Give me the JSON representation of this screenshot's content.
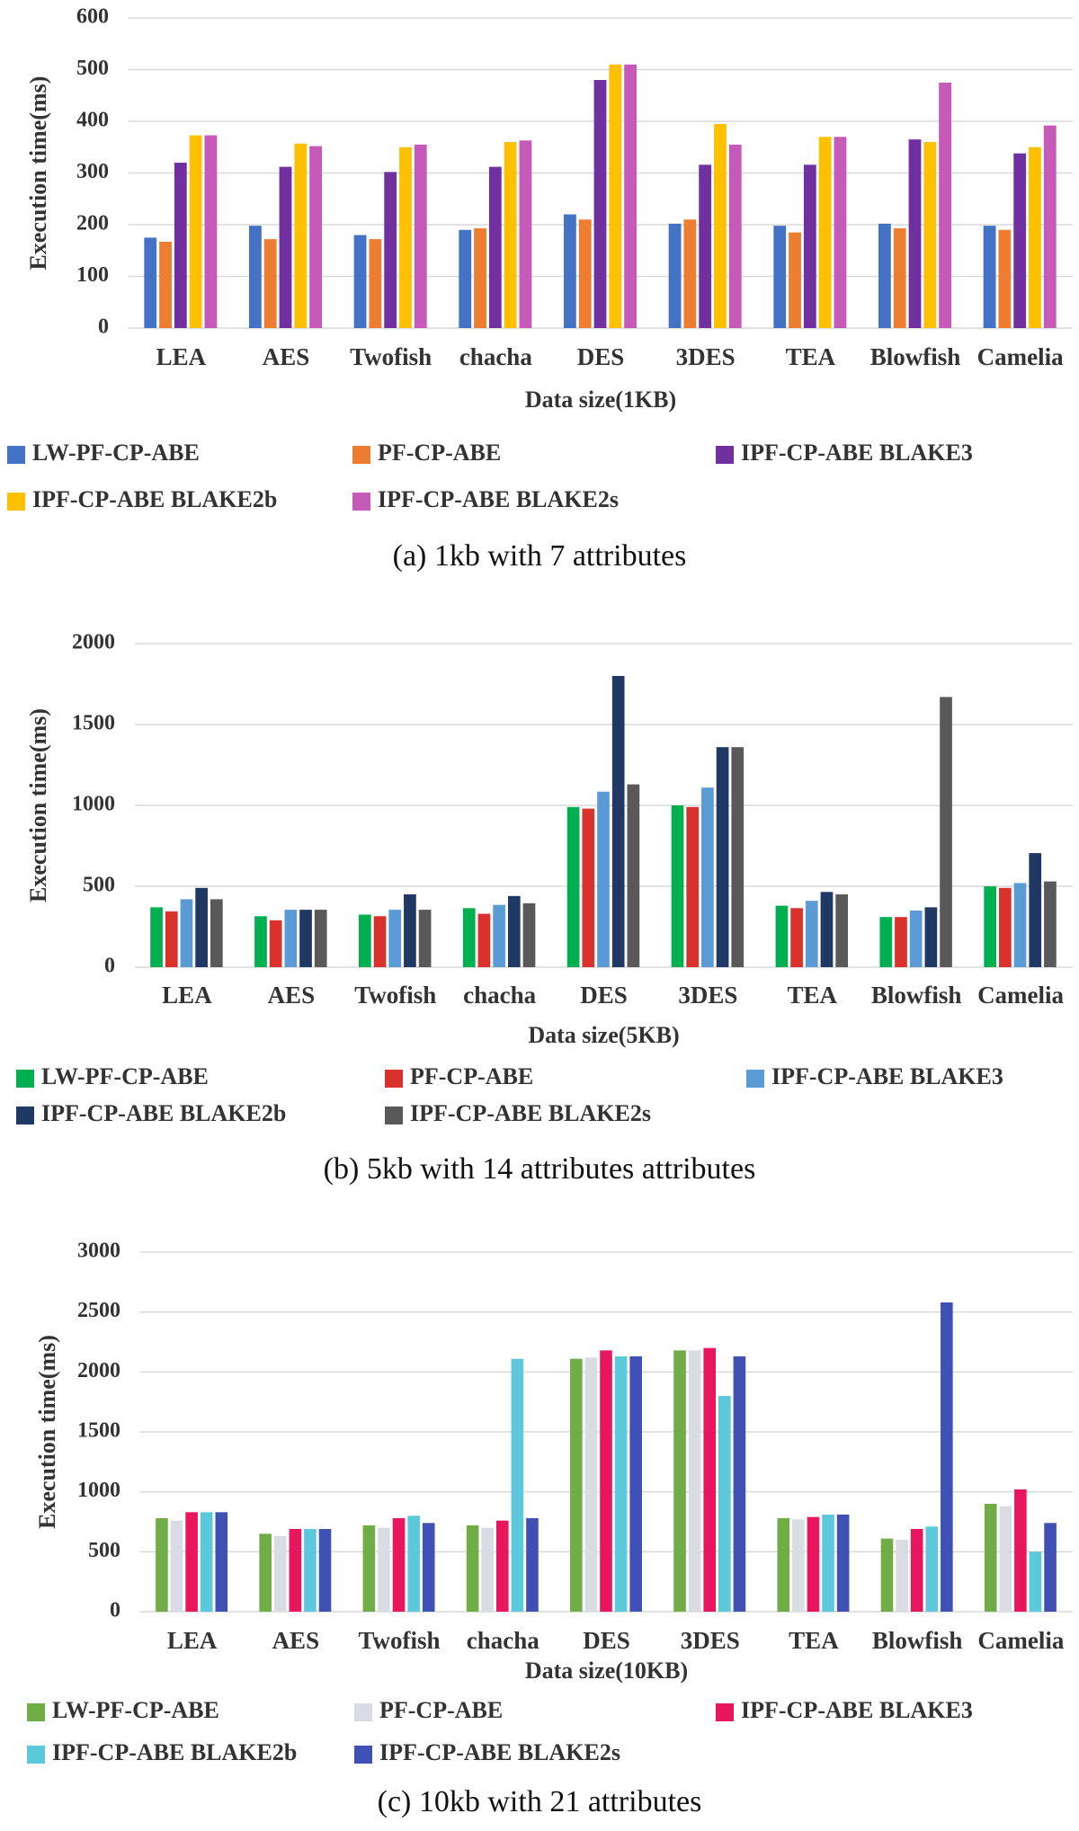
{
  "chart_data": [
    {
      "type": "bar",
      "caption": "(a) 1kb with 7 attributes",
      "x_label": "Data size(1KB)",
      "y_label": "Execution time(ms)",
      "categories": [
        "LEA",
        "AES",
        "Twofish",
        "chacha",
        "DES",
        "3DES",
        "TEA",
        "Blowfish",
        "Camelia"
      ],
      "ylim": [
        0,
        600
      ],
      "yticks": [
        0,
        100,
        200,
        300,
        400,
        500,
        600
      ],
      "grid": true,
      "series": [
        {
          "name": "LW-PF-CP-ABE",
          "color": "#4472c4",
          "values": [
            175,
            198,
            180,
            190,
            220,
            202,
            198,
            202,
            198
          ]
        },
        {
          "name": "PF-CP-ABE",
          "color": "#ed7d31",
          "values": [
            167,
            172,
            172,
            193,
            210,
            210,
            185,
            193,
            190
          ]
        },
        {
          "name": "IPF-CP-ABE BLAKE3",
          "color": "#7030a0",
          "values": [
            320,
            312,
            302,
            312,
            480,
            316,
            316,
            365,
            338
          ]
        },
        {
          "name": "IPF-CP-ABE BLAKE2b",
          "color": "#ffc000",
          "values": [
            373,
            357,
            350,
            360,
            510,
            395,
            370,
            360,
            350
          ]
        },
        {
          "name": "IPF-CP-ABE BLAKE2s",
          "color": "#c55ab8",
          "values": [
            373,
            352,
            355,
            363,
            510,
            355,
            370,
            475,
            392
          ]
        }
      ]
    },
    {
      "type": "bar",
      "caption": "(b) 5kb with 14 attributes attributes",
      "x_label": "Data size(5KB)",
      "y_label": "Execution time(ms)",
      "categories": [
        "LEA",
        "AES",
        "Twofish",
        "chacha",
        "DES",
        "3DES",
        "TEA",
        "Blowfish",
        "Camelia"
      ],
      "ylim": [
        0,
        2000
      ],
      "yticks": [
        0,
        500,
        1000,
        1500,
        2000
      ],
      "grid": true,
      "series": [
        {
          "name": "LW-PF-CP-ABE",
          "color": "#00b050",
          "values": [
            370,
            315,
            325,
            365,
            990,
            1000,
            380,
            310,
            500
          ]
        },
        {
          "name": "PF-CP-ABE",
          "color": "#d9312b",
          "values": [
            345,
            290,
            315,
            330,
            980,
            990,
            365,
            310,
            490
          ]
        },
        {
          "name": "IPF-CP-ABE BLAKE3",
          "color": "#5b9bd5",
          "values": [
            420,
            355,
            355,
            385,
            1085,
            1110,
            410,
            350,
            520
          ]
        },
        {
          "name": "IPF-CP-ABE BLAKE2b",
          "color": "#203864",
          "values": [
            490,
            355,
            450,
            440,
            1800,
            1360,
            465,
            370,
            705
          ]
        },
        {
          "name": "IPF-CP-ABE BLAKE2s",
          "color": "#595959",
          "values": [
            420,
            355,
            355,
            395,
            1130,
            1360,
            450,
            1670,
            530
          ]
        }
      ]
    },
    {
      "type": "bar",
      "caption": "(c) 10kb with 21 attributes",
      "x_label": "Data size(10KB)",
      "y_label": "Execution time(ms)",
      "categories": [
        "LEA",
        "AES",
        "Twofish",
        "chacha",
        "DES",
        "3DES",
        "TEA",
        "Blowfish",
        "Camelia"
      ],
      "ylim": [
        0,
        3000
      ],
      "yticks": [
        0,
        500,
        1000,
        1500,
        2000,
        2500,
        3000
      ],
      "grid": true,
      "series": [
        {
          "name": "LW-PF-CP-ABE",
          "color": "#70ad47",
          "values": [
            780,
            650,
            720,
            720,
            2110,
            2180,
            780,
            610,
            900
          ]
        },
        {
          "name": "PF-CP-ABE",
          "color": "#d9dce3",
          "values": [
            760,
            630,
            700,
            700,
            2120,
            2180,
            770,
            600,
            880
          ]
        },
        {
          "name": "IPF-CP-ABE BLAKE3",
          "color": "#e8175d",
          "values": [
            830,
            690,
            780,
            760,
            2180,
            2200,
            790,
            690,
            1020
          ]
        },
        {
          "name": "IPF-CP-ABE BLAKE2b",
          "color": "#5bc8dc",
          "values": [
            830,
            690,
            800,
            2110,
            2130,
            1800,
            810,
            710,
            500
          ]
        },
        {
          "name": "IPF-CP-ABE BLAKE2s",
          "color": "#3f51b5",
          "values": [
            830,
            690,
            740,
            780,
            2130,
            2130,
            810,
            2580,
            740
          ]
        }
      ]
    }
  ]
}
